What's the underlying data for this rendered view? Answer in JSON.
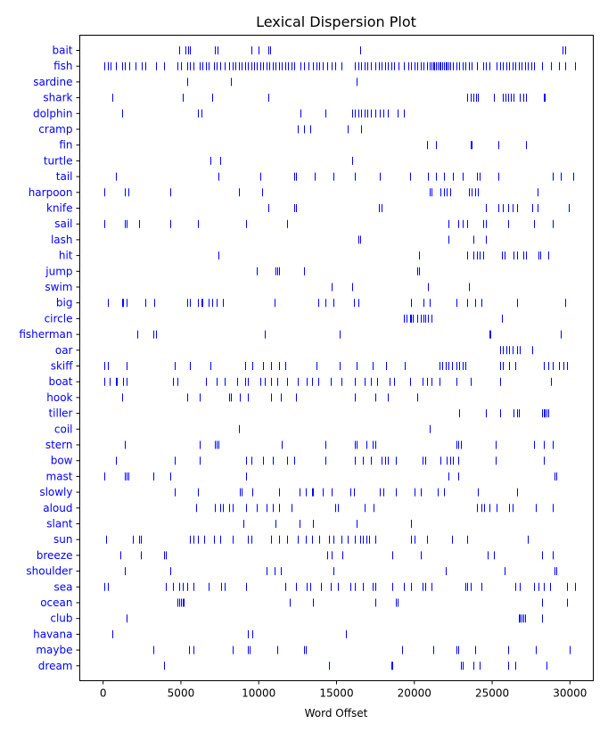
{
  "chart_data": {
    "type": "scatter",
    "title": "Lexical Dispersion Plot",
    "xlabel": "Word Offset",
    "ylabel": "",
    "xlim": [
      -1500,
      31500
    ],
    "xticks": [
      0,
      5000,
      10000,
      15000,
      20000,
      25000,
      30000
    ],
    "xtick_labels": [
      "0",
      "5000",
      "10000",
      "15000",
      "20000",
      "25000",
      "30000"
    ],
    "marker": "|",
    "marker_color": "#0000ff",
    "grid": false,
    "words": [
      {
        "word": "bait",
        "offsets": [
          4900,
          5300,
          5450,
          5600,
          7200,
          7350,
          9500,
          10000,
          10600,
          10750,
          16500,
          29500,
          29700
        ]
      },
      {
        "word": "fish",
        "offsets": [
          100,
          300,
          500,
          800,
          1200,
          1400,
          1700,
          2100,
          2500,
          2700,
          3400,
          3900,
          4800,
          5000,
          5400,
          5600,
          5800,
          6200,
          6400,
          6600,
          6800,
          7100,
          7300,
          7500,
          7800,
          8100,
          8300,
          8500,
          8700,
          8900,
          9100,
          9300,
          9500,
          9700,
          9900,
          10100,
          10300,
          10500,
          10700,
          10900,
          11100,
          11300,
          11500,
          11700,
          11900,
          12100,
          12300,
          12700,
          12900,
          13200,
          13500,
          13700,
          13900,
          14100,
          14400,
          14700,
          14900,
          15300,
          16200,
          16400,
          16600,
          16800,
          17000,
          17200,
          17500,
          17700,
          17900,
          18100,
          18300,
          18500,
          18700,
          19000,
          19300,
          19600,
          19800,
          20000,
          20200,
          20400,
          20600,
          20800,
          21000,
          21100,
          21200,
          21300,
          21400,
          21500,
          21600,
          21700,
          21800,
          21900,
          22000,
          22100,
          22200,
          22300,
          22500,
          22700,
          22900,
          23100,
          23300,
          23500,
          23700,
          24000,
          24400,
          24600,
          24800,
          25300,
          25500,
          25700,
          25900,
          26100,
          26300,
          26500,
          26700,
          26900,
          27100,
          27300,
          27500,
          27700,
          28200,
          28800,
          29300,
          29700,
          30300
        ]
      },
      {
        "word": "sardine",
        "offsets": [
          5400,
          8200,
          16300
        ]
      },
      {
        "word": "shark",
        "offsets": [
          600,
          5100,
          7000,
          10600,
          23400,
          23600,
          23800,
          23950,
          24100,
          25100,
          25700,
          25850,
          26000,
          26200,
          26400,
          26800,
          27000,
          27200,
          28300,
          28400
        ]
      },
      {
        "word": "dolphin",
        "offsets": [
          1200,
          6100,
          6300,
          12700,
          14300,
          16000,
          16200,
          16400,
          16600,
          16800,
          17000,
          17200,
          17500,
          17800,
          18000,
          18300,
          18900,
          19300
        ]
      },
      {
        "word": "cramp",
        "offsets": [
          12500,
          12900,
          13300,
          15700,
          16600
        ]
      },
      {
        "word": "fin",
        "offsets": [
          20800,
          21400,
          23600,
          23700,
          25400,
          27200
        ]
      },
      {
        "word": "turtle",
        "offsets": [
          6900,
          7500,
          16000
        ]
      },
      {
        "word": "tail",
        "offsets": [
          800,
          7400,
          10100,
          12300,
          12400,
          13600,
          14800,
          16200,
          17800,
          19700,
          20900,
          21400,
          21900,
          22500,
          23100,
          24000,
          24200,
          25400,
          28900,
          29400,
          30200
        ]
      },
      {
        "word": "harpoon",
        "offsets": [
          100,
          1400,
          1600,
          4300,
          8700,
          10200,
          21000,
          21100,
          21700,
          21900,
          22100,
          22300,
          23500,
          23700,
          23900,
          24100,
          27900
        ]
      },
      {
        "word": "knife",
        "offsets": [
          10600,
          12300,
          12400,
          17700,
          17900,
          24600,
          25400,
          25700,
          26000,
          26300,
          26600,
          27600,
          27900,
          29900
        ]
      },
      {
        "word": "sail",
        "offsets": [
          100,
          1400,
          1500,
          2300,
          4300,
          6100,
          9200,
          11800,
          22200,
          22800,
          23100,
          23400,
          24400,
          24600,
          26000,
          27700,
          28900
        ]
      },
      {
        "word": "lash",
        "offsets": [
          16400,
          16500,
          22200,
          23800,
          24600
        ]
      },
      {
        "word": "hit",
        "offsets": [
          7400,
          20300,
          23400,
          23800,
          24000,
          24200,
          24400,
          25600,
          25800,
          26400,
          26600,
          27000,
          27200,
          28000,
          28100,
          28600
        ]
      },
      {
        "word": "jump",
        "offsets": [
          9900,
          11100,
          11200,
          11300,
          12900,
          20200,
          20300
        ]
      },
      {
        "word": "swim",
        "offsets": [
          14700,
          16000,
          20900,
          23500
        ]
      },
      {
        "word": "big",
        "offsets": [
          300,
          1200,
          1300,
          1500,
          2700,
          3300,
          5400,
          5600,
          6100,
          6300,
          6400,
          6800,
          7000,
          7300,
          7700,
          11000,
          13800,
          14300,
          14800,
          16100,
          16400,
          19800,
          20600,
          21000,
          22700,
          23400,
          23900,
          24300,
          26600,
          29700
        ]
      },
      {
        "word": "circle",
        "offsets": [
          19300,
          19500,
          19700,
          19800,
          19900,
          20200,
          20400,
          20600,
          20700,
          20900,
          21100,
          25600
        ]
      },
      {
        "word": "fisherman",
        "offsets": [
          2200,
          3200,
          3400,
          10400,
          15200,
          24800,
          24900,
          29400
        ]
      },
      {
        "word": "oar",
        "offsets": [
          25500,
          25700,
          25900,
          26100,
          26300,
          26600,
          26800,
          27600
        ]
      },
      {
        "word": "skiff",
        "offsets": [
          100,
          300,
          1500,
          4600,
          5600,
          6900,
          9100,
          9600,
          10300,
          10800,
          11300,
          11700,
          13700,
          15200,
          16300,
          17300,
          18200,
          19400,
          21600,
          21800,
          22000,
          22200,
          22400,
          22700,
          22900,
          23100,
          23300,
          25500,
          25700,
          26100,
          26500,
          28300,
          28600,
          28900,
          29300,
          29600,
          29800
        ]
      },
      {
        "word": "boat",
        "offsets": [
          100,
          400,
          800,
          900,
          1300,
          1500,
          4500,
          4800,
          6600,
          7300,
          7800,
          8600,
          9100,
          9300,
          10100,
          10400,
          10800,
          11200,
          11800,
          12500,
          13100,
          13400,
          13800,
          14600,
          15300,
          16200,
          16800,
          17200,
          17600,
          18400,
          18700,
          19700,
          20500,
          20800,
          21100,
          21600,
          22700,
          23600,
          25500,
          28800
        ]
      },
      {
        "word": "hook",
        "offsets": [
          1200,
          5400,
          6200,
          8100,
          8200,
          8800,
          9300,
          10800,
          11400,
          12400,
          16200,
          17500,
          18300,
          20200
        ]
      },
      {
        "word": "tiller",
        "offsets": [
          22900,
          24600,
          25500,
          26400,
          26600,
          26700,
          28200,
          28300,
          28400,
          28500,
          28600
        ]
      },
      {
        "word": "coil",
        "offsets": [
          8700,
          21000
        ]
      },
      {
        "word": "stern",
        "offsets": [
          1400,
          6200,
          7200,
          7300,
          7400,
          11500,
          14300,
          16200,
          16300,
          16900,
          17300,
          17500,
          22700,
          22800,
          23000,
          25200,
          27700,
          28300,
          28900
        ]
      },
      {
        "word": "bow",
        "offsets": [
          800,
          4600,
          6200,
          9200,
          9500,
          10300,
          10900,
          11800,
          12300,
          14300,
          16200,
          16700,
          17200,
          17900,
          18100,
          18300,
          18800,
          20500,
          20700,
          21700,
          22100,
          22300,
          22500,
          22800,
          25200,
          28300
        ]
      },
      {
        "word": "mast",
        "offsets": [
          100,
          1400,
          1500,
          1600,
          3200,
          4300,
          9200,
          22200,
          22800,
          29000,
          29100
        ]
      },
      {
        "word": "slowly",
        "offsets": [
          4600,
          6100,
          8800,
          8900,
          9600,
          11300,
          12600,
          13000,
          13400,
          13500,
          14100,
          14700,
          15900,
          16100,
          17800,
          18000,
          18800,
          20000,
          20400,
          21500,
          21900,
          24100,
          26600
        ]
      },
      {
        "word": "aloud",
        "offsets": [
          6000,
          7200,
          7500,
          7700,
          8100,
          8300,
          9200,
          9900,
          10500,
          10900,
          11300,
          12100,
          14900,
          15100,
          16800,
          17400,
          24000,
          24300,
          24500,
          24800,
          25300,
          26100,
          26300,
          27800,
          28900
        ]
      },
      {
        "word": "slant",
        "offsets": [
          9000,
          11100,
          12600,
          13500,
          16300,
          19800
        ]
      },
      {
        "word": "sun",
        "offsets": [
          200,
          1900,
          2300,
          2400,
          5600,
          5800,
          6100,
          6500,
          7100,
          7500,
          8300,
          9300,
          9500,
          10800,
          11300,
          11800,
          12500,
          13000,
          13400,
          13900,
          14500,
          14800,
          15300,
          15700,
          16200,
          16500,
          16700,
          16900,
          17100,
          17500,
          19800,
          20000,
          20800,
          22400,
          23400,
          27300
        ]
      },
      {
        "word": "breeze",
        "offsets": [
          1100,
          2400,
          3900,
          4000,
          14400,
          14700,
          15400,
          18600,
          20400,
          24700,
          25100,
          28200,
          28900
        ]
      },
      {
        "word": "shoulder",
        "offsets": [
          1400,
          4300,
          10500,
          11000,
          11400,
          14800,
          22000,
          25800,
          29000,
          29100
        ]
      },
      {
        "word": "sea",
        "offsets": [
          100,
          300,
          4000,
          4500,
          4900,
          5100,
          5400,
          5800,
          6800,
          7600,
          7800,
          9200,
          11700,
          12400,
          13100,
          13300,
          14000,
          14600,
          15100,
          15900,
          16200,
          16700,
          17300,
          17500,
          18600,
          19300,
          19800,
          20500,
          20700,
          21100,
          23300,
          23400,
          23600,
          24300,
          26500,
          26800,
          27700,
          28000,
          28300,
          28700,
          29800,
          30300
        ]
      },
      {
        "word": "ocean",
        "offsets": [
          4800,
          4900,
          5000,
          5100,
          5200,
          12000,
          13500,
          17500,
          18800,
          18900,
          28200,
          29800
        ]
      },
      {
        "word": "club",
        "offsets": [
          1500,
          26700,
          26800,
          26900,
          27000,
          27100,
          28200
        ]
      },
      {
        "word": "havana",
        "offsets": [
          600,
          9300,
          9600,
          15600
        ]
      },
      {
        "word": "maybe",
        "offsets": [
          3200,
          5500,
          5800,
          8300,
          9300,
          9400,
          11200,
          12900,
          13000,
          19200,
          21200,
          22700,
          22800,
          23900,
          26000,
          27800,
          30000
        ]
      },
      {
        "word": "dream",
        "offsets": [
          3900,
          14500,
          18500,
          18600,
          23000,
          23100,
          23800,
          24200,
          26000,
          26500,
          28500
        ]
      }
    ]
  }
}
